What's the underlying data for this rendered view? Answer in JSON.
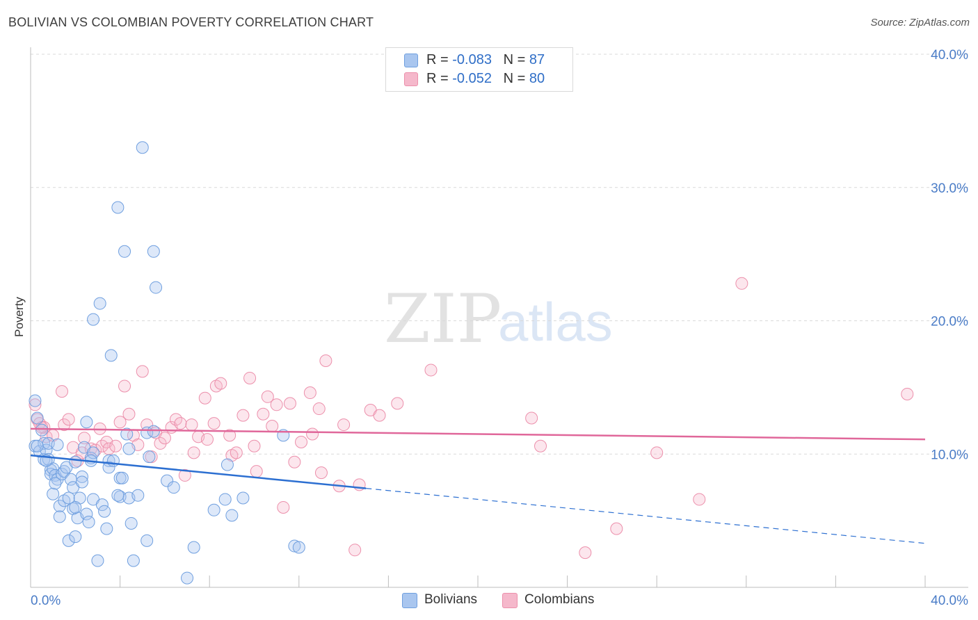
{
  "header": {
    "title": "BOLIVIAN VS COLOMBIAN POVERTY CORRELATION CHART",
    "source": "Source: ZipAtlas.com"
  },
  "legend": {
    "rows": [
      {
        "r_label": "R = ",
        "r_value": "-0.083",
        "n_label": "N = ",
        "n_value": "87",
        "color": "#a9c6ef"
      },
      {
        "r_label": "R = ",
        "r_value": "-0.052",
        "n_label": "N = ",
        "n_value": "80",
        "color": "#f5b8cb"
      }
    ]
  },
  "bottom_legend": [
    "Bolivians",
    "Colombians"
  ],
  "watermark": {
    "zip": "ZIP",
    "atlas": "atlas"
  },
  "chart_data": {
    "type": "scatter",
    "title": "BOLIVIAN VS COLOMBIAN POVERTY CORRELATION CHART",
    "xlabel": "",
    "ylabel": "Poverty",
    "xlim": [
      0,
      40
    ],
    "ylim": [
      0,
      40
    ],
    "x_tick_labels": [
      "0.0%",
      "40.0%"
    ],
    "y_ticks": [
      10,
      20,
      30,
      40
    ],
    "y_tick_labels": [
      "10.0%",
      "20.0%",
      "30.0%",
      "40.0%"
    ],
    "grid": true,
    "colors": {
      "Bolivians": "#6f9fdf",
      "Colombians": "#ec8fab",
      "bolivian_line": "#2c6fd1",
      "colombian_line": "#e0679a"
    },
    "series": [
      {
        "name": "Bolivians",
        "r": -0.083,
        "n": 87,
        "trend": {
          "x0": 0,
          "y0": 9.9,
          "x_solid_end": 15,
          "x1": 40,
          "y1": 3.3
        },
        "points": [
          [
            0.2,
            14.0
          ],
          [
            0.3,
            12.7
          ],
          [
            0.2,
            10.6
          ],
          [
            0.4,
            10.2
          ],
          [
            0.5,
            11.8
          ],
          [
            0.6,
            10.8
          ],
          [
            0.6,
            9.6
          ],
          [
            0.7,
            10.3
          ],
          [
            0.8,
            9.6
          ],
          [
            0.8,
            10.8
          ],
          [
            0.9,
            8.8
          ],
          [
            0.9,
            8.5
          ],
          [
            1.0,
            8.9
          ],
          [
            1.0,
            7.0
          ],
          [
            1.1,
            8.4
          ],
          [
            1.2,
            8.1
          ],
          [
            1.2,
            10.7
          ],
          [
            1.3,
            6.1
          ],
          [
            1.3,
            5.3
          ],
          [
            1.4,
            8.5
          ],
          [
            1.5,
            6.5
          ],
          [
            1.5,
            8.7
          ],
          [
            1.6,
            9.0
          ],
          [
            1.7,
            6.7
          ],
          [
            1.7,
            3.5
          ],
          [
            1.8,
            8.1
          ],
          [
            1.9,
            7.5
          ],
          [
            1.9,
            5.9
          ],
          [
            2.0,
            3.8
          ],
          [
            2.0,
            9.4
          ],
          [
            2.1,
            5.2
          ],
          [
            2.2,
            6.7
          ],
          [
            2.3,
            8.3
          ],
          [
            2.3,
            7.9
          ],
          [
            2.4,
            10.5
          ],
          [
            2.5,
            5.5
          ],
          [
            2.5,
            12.4
          ],
          [
            2.6,
            4.9
          ],
          [
            2.7,
            9.7
          ],
          [
            2.8,
            10.1
          ],
          [
            2.8,
            6.6
          ],
          [
            3.0,
            2.0
          ],
          [
            3.1,
            21.3
          ],
          [
            3.2,
            6.2
          ],
          [
            3.3,
            5.7
          ],
          [
            3.4,
            4.4
          ],
          [
            3.5,
            9.5
          ],
          [
            3.5,
            9.0
          ],
          [
            2.8,
            20.1
          ],
          [
            3.6,
            17.4
          ],
          [
            3.7,
            9.5
          ],
          [
            3.9,
            28.5
          ],
          [
            4.0,
            6.8
          ],
          [
            4.0,
            8.2
          ],
          [
            4.1,
            8.2
          ],
          [
            4.2,
            25.2
          ],
          [
            4.3,
            11.5
          ],
          [
            4.4,
            10.4
          ],
          [
            4.4,
            6.7
          ],
          [
            4.5,
            4.8
          ],
          [
            4.6,
            2.0
          ],
          [
            4.8,
            6.9
          ],
          [
            5.0,
            33.0
          ],
          [
            5.2,
            3.5
          ],
          [
            5.3,
            9.8
          ],
          [
            5.5,
            25.2
          ],
          [
            5.6,
            22.5
          ],
          [
            5.2,
            11.6
          ],
          [
            6.1,
            8.0
          ],
          [
            6.4,
            7.5
          ],
          [
            7.0,
            0.7
          ],
          [
            7.3,
            3.0
          ],
          [
            8.2,
            5.8
          ],
          [
            8.7,
            6.6
          ],
          [
            8.8,
            9.2
          ],
          [
            9.0,
            5.4
          ],
          [
            9.5,
            6.7
          ],
          [
            11.3,
            11.4
          ],
          [
            11.8,
            3.1
          ],
          [
            12.0,
            3.0
          ],
          [
            0.3,
            10.6
          ],
          [
            0.7,
            9.5
          ],
          [
            1.1,
            7.8
          ],
          [
            2.0,
            6.0
          ],
          [
            2.7,
            9.5
          ],
          [
            5.5,
            11.7
          ],
          [
            3.9,
            6.9
          ]
        ]
      },
      {
        "name": "Colombians",
        "r": -0.052,
        "n": 80,
        "trend": {
          "x0": 0,
          "y0": 11.9,
          "x1": 40,
          "y1": 11.1
        },
        "points": [
          [
            0.2,
            13.7
          ],
          [
            0.3,
            12.6
          ],
          [
            0.4,
            12.3
          ],
          [
            0.6,
            12.0
          ],
          [
            0.7,
            11.3
          ],
          [
            1.0,
            11.4
          ],
          [
            1.4,
            14.7
          ],
          [
            1.5,
            12.2
          ],
          [
            1.7,
            12.6
          ],
          [
            1.9,
            10.5
          ],
          [
            2.1,
            9.5
          ],
          [
            2.3,
            10.1
          ],
          [
            2.4,
            11.2
          ],
          [
            2.7,
            10.4
          ],
          [
            2.9,
            10.3
          ],
          [
            3.1,
            11.9
          ],
          [
            3.2,
            10.6
          ],
          [
            3.4,
            10.9
          ],
          [
            3.5,
            10.4
          ],
          [
            3.8,
            10.6
          ],
          [
            4.0,
            12.4
          ],
          [
            4.2,
            15.1
          ],
          [
            4.4,
            13.0
          ],
          [
            4.6,
            11.4
          ],
          [
            4.8,
            10.7
          ],
          [
            5.0,
            16.2
          ],
          [
            5.2,
            12.2
          ],
          [
            5.4,
            9.8
          ],
          [
            5.6,
            11.6
          ],
          [
            5.8,
            10.8
          ],
          [
            6.0,
            11.2
          ],
          [
            6.3,
            12.0
          ],
          [
            6.5,
            12.6
          ],
          [
            6.7,
            12.3
          ],
          [
            6.9,
            8.4
          ],
          [
            7.2,
            12.2
          ],
          [
            7.3,
            10.1
          ],
          [
            7.5,
            11.3
          ],
          [
            7.8,
            14.2
          ],
          [
            7.9,
            11.1
          ],
          [
            8.2,
            12.3
          ],
          [
            8.3,
            15.1
          ],
          [
            8.5,
            15.3
          ],
          [
            8.9,
            11.4
          ],
          [
            9.0,
            9.9
          ],
          [
            9.2,
            10.1
          ],
          [
            9.5,
            12.9
          ],
          [
            9.8,
            15.7
          ],
          [
            10.0,
            10.6
          ],
          [
            10.1,
            8.7
          ],
          [
            10.4,
            13.0
          ],
          [
            10.6,
            14.3
          ],
          [
            10.8,
            12.1
          ],
          [
            11.0,
            13.7
          ],
          [
            11.3,
            6.0
          ],
          [
            11.6,
            13.8
          ],
          [
            11.8,
            9.4
          ],
          [
            12.1,
            10.9
          ],
          [
            12.5,
            14.6
          ],
          [
            12.6,
            11.5
          ],
          [
            12.9,
            13.4
          ],
          [
            13.0,
            8.6
          ],
          [
            13.2,
            17.0
          ],
          [
            13.8,
            7.6
          ],
          [
            14.0,
            12.2
          ],
          [
            14.5,
            2.8
          ],
          [
            14.7,
            7.7
          ],
          [
            15.2,
            13.3
          ],
          [
            15.6,
            12.9
          ],
          [
            16.4,
            13.8
          ],
          [
            17.9,
            16.3
          ],
          [
            22.4,
            12.7
          ],
          [
            22.8,
            10.6
          ],
          [
            24.8,
            2.6
          ],
          [
            26.2,
            4.4
          ],
          [
            28.0,
            10.1
          ],
          [
            29.9,
            6.6
          ],
          [
            31.8,
            22.8
          ],
          [
            39.2,
            14.5
          ],
          [
            0.5,
            12.0
          ]
        ]
      }
    ]
  }
}
